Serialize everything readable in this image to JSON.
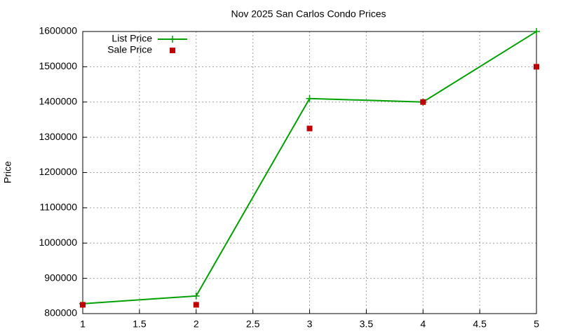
{
  "chart_data": {
    "type": "line",
    "title": "Nov 2025 San Carlos Condo Prices",
    "y_label": "Price",
    "x": [
      1,
      2,
      3,
      4,
      5
    ],
    "series": [
      {
        "name": "List Price",
        "color": "#00a000",
        "style": "linespoints",
        "values": [
          828000,
          850000,
          1410000,
          1400000,
          1600000
        ]
      },
      {
        "name": "Sale Price",
        "color": "#c00000",
        "style": "points",
        "values": [
          825000,
          825000,
          1325000,
          1400000,
          1500000
        ]
      }
    ],
    "xlim": [
      1,
      5
    ],
    "xticks": [
      1,
      1.5,
      2,
      2.5,
      3,
      3.5,
      4,
      4.5,
      5
    ],
    "ylim": [
      800000,
      1600000
    ],
    "yticks": [
      800000,
      900000,
      1000000,
      1100000,
      1200000,
      1300000,
      1400000,
      1500000,
      1600000
    ],
    "grid": true,
    "legend": "top-left"
  }
}
